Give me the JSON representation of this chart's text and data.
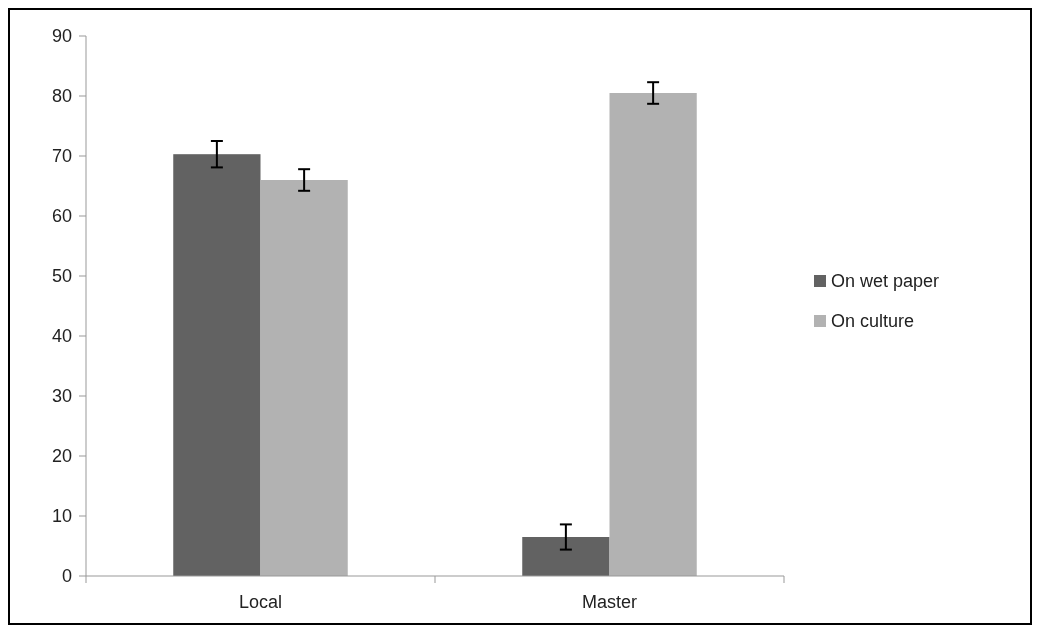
{
  "chart_data": {
    "type": "bar",
    "categories": [
      "Local",
      "Master"
    ],
    "series": [
      {
        "name": "On wet paper",
        "color": "#626262",
        "values": [
          70.3,
          6.5
        ],
        "errors": [
          2.2,
          2.1
        ]
      },
      {
        "name": "On culture",
        "color": "#b2b2b2",
        "values": [
          66,
          80.5
        ],
        "errors": [
          1.8,
          1.8
        ]
      }
    ],
    "ylim": [
      0,
      90
    ],
    "yticks": [
      0,
      10,
      20,
      30,
      40,
      50,
      60,
      70,
      80,
      90
    ],
    "grid": false,
    "legend": "right"
  }
}
